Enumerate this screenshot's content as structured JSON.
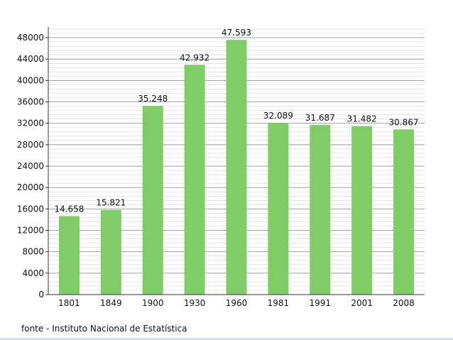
{
  "chart_data": {
    "type": "bar",
    "categories": [
      "1801",
      "1849",
      "1900",
      "1930",
      "1960",
      "1981",
      "1991",
      "2001",
      "2008"
    ],
    "values": [
      14658,
      15821,
      35248,
      42932,
      47593,
      32089,
      31687,
      31482,
      30867
    ],
    "data_labels": [
      "14.658",
      "15.821",
      "35.248",
      "42.932",
      "47.593",
      "32.089",
      "31.687",
      "31.482",
      "30.867"
    ],
    "yticks": [
      "0",
      "4000",
      "8000",
      "12000",
      "16000",
      "20000",
      "24000",
      "28000",
      "32000",
      "36000",
      "40000",
      "44000",
      "48000"
    ],
    "ylim": [
      0,
      50000
    ],
    "grid": true,
    "bar_color": "#80cc66",
    "title": "",
    "xlabel": "",
    "ylabel": ""
  },
  "source_note": "fonte - Instituto Nacional de Estatística"
}
